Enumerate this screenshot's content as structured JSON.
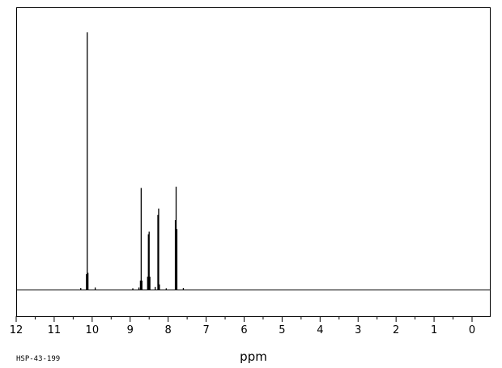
{
  "chart_data": {
    "type": "line",
    "xlabel": "ppm",
    "code": "HSP-43-199",
    "xlim": [
      12,
      0
    ],
    "ylim": [
      0,
      100
    ],
    "x_reversed": true,
    "grid": false,
    "ticks": [
      12,
      11,
      10,
      9,
      8,
      7,
      6,
      5,
      4,
      3,
      2,
      1,
      0
    ],
    "tick_labels": [
      "12",
      "11",
      "10",
      "9",
      "8",
      "7",
      "6",
      "5",
      "4",
      "3",
      "2",
      "1",
      "0"
    ],
    "peaks": [
      {
        "ppm": 10.3,
        "height": 0.6
      },
      {
        "ppm": 10.15,
        "height": 6.0
      },
      {
        "ppm": 10.13,
        "height": 100
      },
      {
        "ppm": 10.11,
        "height": 6.5
      },
      {
        "ppm": 9.92,
        "height": 0.8
      },
      {
        "ppm": 8.93,
        "height": 0.5
      },
      {
        "ppm": 8.77,
        "height": 0.8
      },
      {
        "ppm": 8.73,
        "height": 3.5
      },
      {
        "ppm": 8.71,
        "height": 39.5
      },
      {
        "ppm": 8.69,
        "height": 3.5
      },
      {
        "ppm": 8.54,
        "height": 5.0
      },
      {
        "ppm": 8.52,
        "height": 21.5
      },
      {
        "ppm": 8.5,
        "height": 22.5
      },
      {
        "ppm": 8.48,
        "height": 5.0
      },
      {
        "ppm": 8.34,
        "height": 1.0
      },
      {
        "ppm": 8.27,
        "height": 29.0
      },
      {
        "ppm": 8.25,
        "height": 31.5
      },
      {
        "ppm": 8.23,
        "height": 2.0
      },
      {
        "ppm": 8.05,
        "height": 0.5
      },
      {
        "ppm": 7.81,
        "height": 27.0
      },
      {
        "ppm": 7.79,
        "height": 40.0
      },
      {
        "ppm": 7.77,
        "height": 23.5
      },
      {
        "ppm": 7.6,
        "height": 0.6
      }
    ]
  }
}
